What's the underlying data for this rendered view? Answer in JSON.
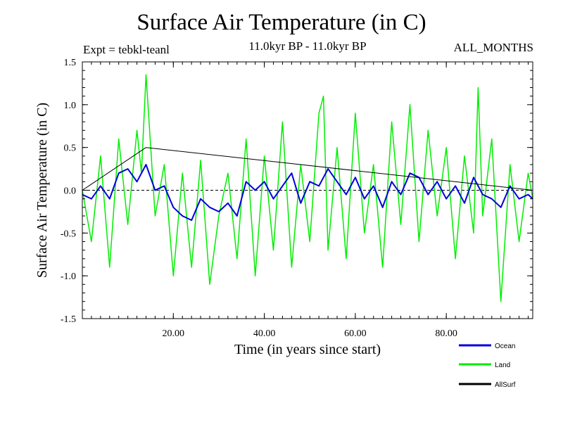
{
  "header": {
    "title": "Surface Air Temperature (in C)",
    "experiment": "Expt = tebkl-teanl",
    "period": "11.0kyr BP - 11.0kyr BP",
    "months": "ALL_MONTHS"
  },
  "colors": {
    "ocean": "#0000dd",
    "land": "#00ee00",
    "allsurf": "#000000",
    "axis": "#000000"
  },
  "chart_data": {
    "type": "line",
    "title": "Surface Air Temperature (in C)",
    "xlabel": "Time (in years since start)",
    "ylabel": "Surface Air Temperature (in C)",
    "xlim": [
      0.0,
      99.0
    ],
    "ylim": [
      -1.5,
      1.5
    ],
    "x_ticks": [
      20,
      40,
      60,
      80
    ],
    "x_tick_labels": [
      "20.00",
      "40.00",
      "60.00",
      "80.00"
    ],
    "y_ticks": [
      -1.5,
      -1.0,
      -0.5,
      0.0,
      0.5,
      1.0,
      1.5
    ],
    "y_tick_labels": [
      "-1.5",
      "-1.0",
      "-0.5",
      "0.0",
      "0.5",
      "1.0",
      "1.5"
    ],
    "zero_line": true,
    "legend": [
      "Ocean",
      "Land",
      "AllSurf"
    ],
    "legend_position": "bottom-right",
    "series": [
      {
        "name": "Land",
        "x": [
          0,
          2,
          4,
          6,
          8,
          10,
          12,
          13,
          14,
          16,
          18,
          20,
          22,
          24,
          26,
          28,
          30,
          32,
          34,
          36,
          38,
          40,
          42,
          44,
          46,
          48,
          50,
          52,
          53,
          54,
          56,
          58,
          60,
          62,
          64,
          66,
          68,
          70,
          72,
          74,
          76,
          78,
          80,
          82,
          84,
          86,
          87,
          88,
          90,
          92,
          94,
          96,
          98,
          99
        ],
        "y": [
          0.0,
          -0.6,
          0.4,
          -0.9,
          0.6,
          -0.4,
          0.7,
          0.2,
          1.35,
          -0.3,
          0.3,
          -1.0,
          0.2,
          -0.9,
          0.35,
          -1.1,
          -0.3,
          0.2,
          -0.8,
          0.6,
          -1.0,
          0.4,
          -0.7,
          0.8,
          -0.9,
          0.3,
          -0.6,
          0.9,
          1.1,
          -0.7,
          0.5,
          -0.8,
          0.9,
          -0.5,
          0.3,
          -0.9,
          0.8,
          -0.4,
          1.0,
          -0.6,
          0.7,
          -0.3,
          0.5,
          -0.8,
          0.4,
          -0.5,
          1.2,
          -0.3,
          0.6,
          -1.3,
          0.3,
          -0.6,
          0.2,
          -0.1
        ]
      },
      {
        "name": "Ocean",
        "x": [
          0,
          2,
          4,
          6,
          8,
          10,
          12,
          14,
          16,
          18,
          20,
          22,
          24,
          26,
          28,
          30,
          32,
          34,
          36,
          38,
          40,
          42,
          44,
          46,
          48,
          50,
          52,
          54,
          56,
          58,
          60,
          62,
          64,
          66,
          68,
          70,
          72,
          74,
          76,
          78,
          80,
          82,
          84,
          86,
          88,
          90,
          92,
          94,
          96,
          98,
          99
        ],
        "y": [
          -0.05,
          -0.1,
          0.05,
          -0.1,
          0.2,
          0.25,
          0.1,
          0.3,
          0.0,
          0.05,
          -0.2,
          -0.3,
          -0.35,
          -0.1,
          -0.2,
          -0.25,
          -0.15,
          -0.3,
          0.1,
          0.0,
          0.1,
          -0.1,
          0.05,
          0.2,
          -0.15,
          0.1,
          0.05,
          0.25,
          0.1,
          -0.05,
          0.15,
          -0.1,
          0.05,
          -0.2,
          0.1,
          -0.05,
          0.2,
          0.15,
          -0.05,
          0.1,
          -0.1,
          0.05,
          -0.15,
          0.15,
          -0.05,
          -0.1,
          -0.2,
          0.05,
          -0.1,
          -0.05,
          -0.1
        ]
      },
      {
        "name": "AllSurf",
        "x": [
          0,
          14,
          99
        ],
        "y": [
          0.0,
          0.5,
          0.0
        ]
      }
    ]
  }
}
